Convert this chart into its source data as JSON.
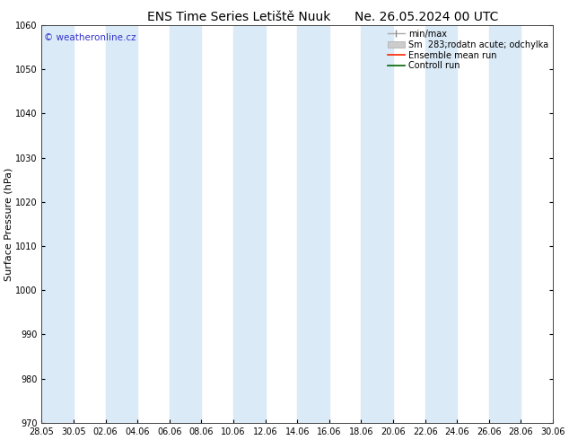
{
  "title": "ENS Time Series Letiště Nuuk",
  "title2": "Ne. 26.05.2024 00 UTC",
  "ylabel": "Surface Pressure (hPa)",
  "ylim": [
    970,
    1060
  ],
  "yticks": [
    970,
    980,
    990,
    1000,
    1010,
    1020,
    1030,
    1040,
    1050,
    1060
  ],
  "xlabels": [
    "28.05",
    "30.05",
    "02.06",
    "04.06",
    "06.06",
    "08.06",
    "10.06",
    "12.06",
    "14.06",
    "16.06",
    "18.06",
    "20.06",
    "22.06",
    "24.06",
    "26.06",
    "28.06",
    "30.06"
  ],
  "bg_color": "#ffffff",
  "plot_bg_color": "#ffffff",
  "band_color": "#daeaf7",
  "watermark": "© weatheronline.cz",
  "watermark_color": "#3333cc",
  "legend_entries": [
    "min/max",
    "Sm  283;rodatn acute; odchylka",
    "Ensemble mean run",
    "Controll run"
  ],
  "legend_colors_line": [
    "#aaaaaa",
    "#bbbbbb",
    "#ff0000",
    "#006600"
  ],
  "title_fontsize": 10,
  "axis_fontsize": 8,
  "tick_fontsize": 7,
  "legend_fontsize": 7
}
